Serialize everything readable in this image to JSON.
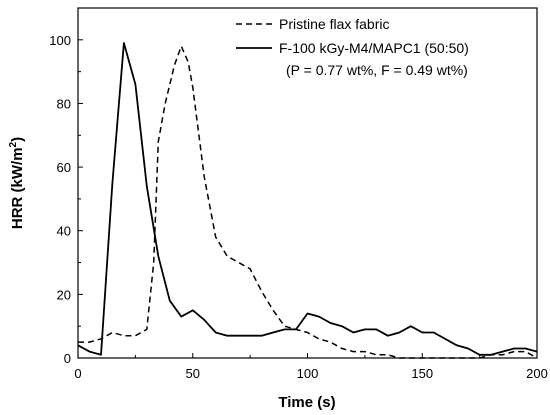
{
  "chart_data": {
    "type": "line",
    "xlabel": "Time (s)",
    "ylabel_main": "HRR (kW/m",
    "ylabel_sup": "2",
    "ylabel_tail": ")",
    "xlim": [
      0,
      200
    ],
    "ylim": [
      0,
      110
    ],
    "xticks": [
      0,
      50,
      100,
      150,
      200
    ],
    "yticks": [
      0,
      20,
      40,
      60,
      80,
      100
    ],
    "grid": false,
    "legend_position": "top-right",
    "series": [
      {
        "name": "Pristine flax fabric",
        "style": "dashed",
        "color": "#000000",
        "x": [
          0,
          5,
          10,
          15,
          20,
          25,
          30,
          33,
          35,
          38,
          42,
          45,
          48,
          50,
          55,
          60,
          65,
          70,
          75,
          80,
          85,
          90,
          95,
          100,
          105,
          110,
          115,
          120,
          125,
          130,
          135,
          140,
          145,
          150,
          155,
          160,
          165,
          170,
          175,
          180,
          185,
          190,
          195,
          200
        ],
        "y": [
          5,
          5,
          6,
          8,
          7,
          7,
          9,
          30,
          68,
          80,
          92,
          98,
          93,
          85,
          57,
          38,
          32,
          30,
          28,
          21,
          15,
          10,
          9,
          8,
          6,
          5,
          3,
          2,
          2,
          1,
          1,
          0,
          0,
          0,
          0,
          0,
          0,
          0,
          0,
          1,
          1,
          2,
          2,
          0
        ]
      },
      {
        "name": "F-100 kGy-M4/MAPC1 (50:50)",
        "legend_subline": "(P = 0.77 wt%, F = 0.49 wt%)",
        "style": "solid",
        "color": "#000000",
        "x": [
          0,
          5,
          10,
          15,
          20,
          25,
          30,
          35,
          40,
          45,
          50,
          55,
          60,
          65,
          70,
          75,
          80,
          85,
          90,
          95,
          100,
          105,
          110,
          115,
          120,
          125,
          130,
          135,
          140,
          145,
          150,
          155,
          160,
          165,
          170,
          175,
          180,
          185,
          190,
          195,
          200
        ],
        "y": [
          4,
          2,
          1,
          55,
          99,
          86,
          54,
          32,
          18,
          13,
          15,
          12,
          8,
          7,
          7,
          7,
          7,
          8,
          9,
          9,
          14,
          13,
          11,
          10,
          8,
          9,
          9,
          7,
          8,
          10,
          8,
          8,
          6,
          4,
          3,
          1,
          1,
          2,
          3,
          3,
          2
        ]
      }
    ]
  }
}
